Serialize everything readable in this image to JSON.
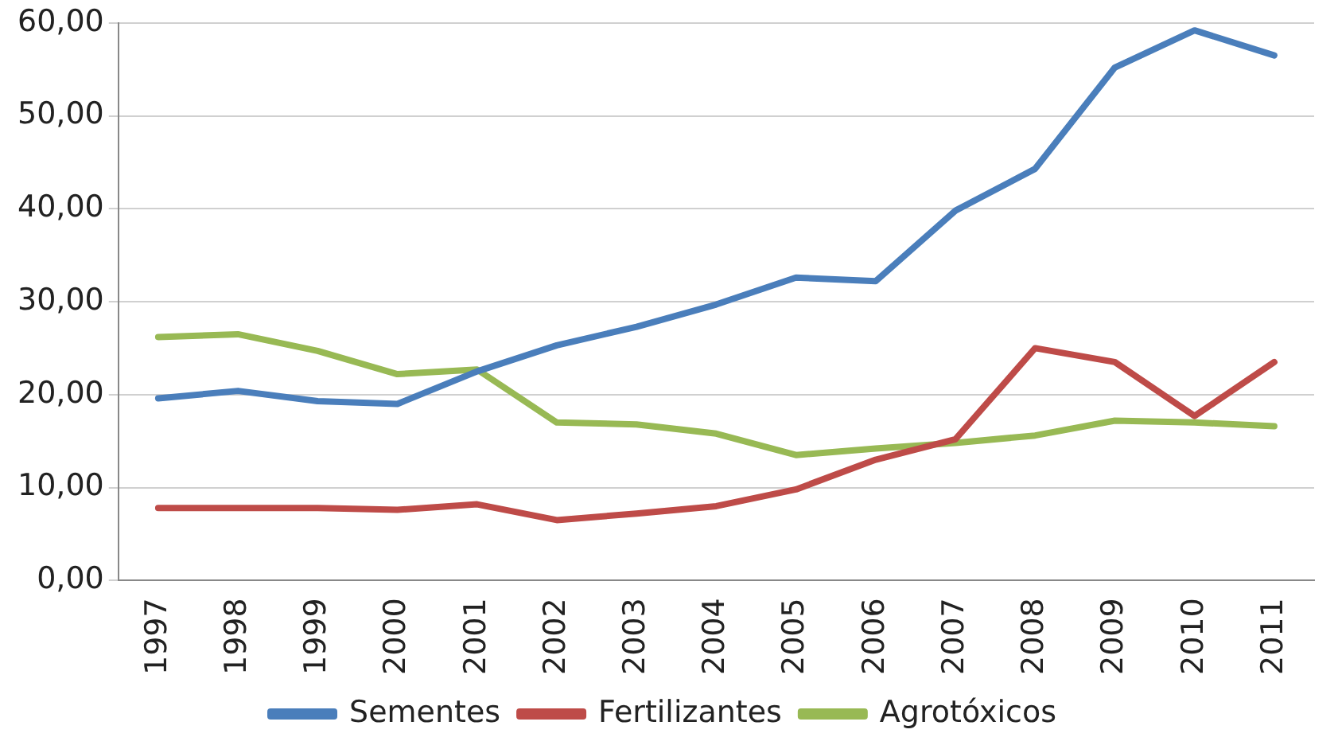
{
  "chart_data": {
    "type": "line",
    "categories": [
      "1997",
      "1998",
      "1999",
      "2000",
      "2001",
      "2002",
      "2003",
      "2004",
      "2005",
      "2006",
      "2007",
      "2008",
      "2009",
      "2010",
      "2011"
    ],
    "series": [
      {
        "name": "Sementes",
        "color": "#4a7ebb",
        "values": [
          19.6,
          20.4,
          19.3,
          19.0,
          22.5,
          25.3,
          27.3,
          29.7,
          32.6,
          32.2,
          39.8,
          44.3,
          55.2,
          59.2,
          56.5
        ]
      },
      {
        "name": "Fertilizantes",
        "color": "#be4b48",
        "values": [
          7.8,
          7.8,
          7.8,
          7.6,
          8.2,
          6.5,
          7.2,
          8.0,
          9.8,
          13.0,
          15.2,
          25.0,
          23.5,
          17.7,
          23.5
        ]
      },
      {
        "name": "Agrotóxicos",
        "color": "#98b954",
        "values": [
          26.2,
          26.5,
          24.7,
          22.2,
          22.7,
          17.0,
          16.8,
          15.8,
          13.5,
          14.2,
          14.8,
          15.6,
          17.2,
          17.0,
          16.6
        ]
      }
    ],
    "ylim": [
      0,
      60
    ],
    "yticks": [
      {
        "value": 0,
        "label": "0,00"
      },
      {
        "value": 10,
        "label": "10,00"
      },
      {
        "value": 20,
        "label": "20,00"
      },
      {
        "value": 30,
        "label": "30,00"
      },
      {
        "value": 40,
        "label": "40,00"
      },
      {
        "value": 50,
        "label": "50,00"
      },
      {
        "value": 60,
        "label": "60,00"
      }
    ],
    "grid": "y",
    "legend": "bottom",
    "marker": "none",
    "line_style": "solid"
  }
}
